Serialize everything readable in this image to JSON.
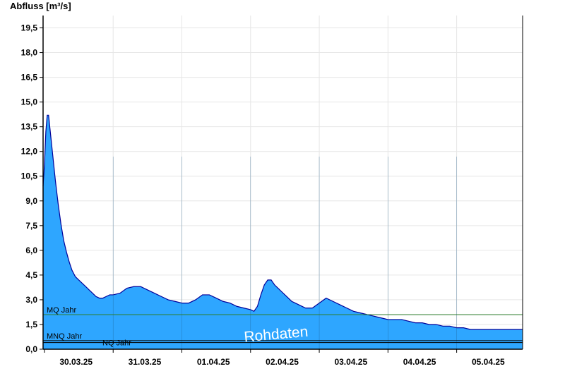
{
  "chart_data": {
    "type": "area",
    "ylabel": "Abfluss [m³/s]",
    "ylim": [
      0,
      20.25
    ],
    "yticks": [
      0.0,
      1.5,
      3.0,
      4.5,
      6.0,
      7.5,
      9.0,
      10.5,
      12.0,
      13.5,
      15.0,
      16.5,
      18.0,
      19.5
    ],
    "ytick_labels": [
      "0,0",
      "1,5",
      "3,0",
      "4,5",
      "6,0",
      "7,5",
      "9,0",
      "10,5",
      "12,0",
      "13,5",
      "15,0",
      "16,5",
      "18,0",
      "19,5"
    ],
    "xlim": [
      -0.02,
      6.96
    ],
    "xtick_labels": [
      "30.03.25",
      "31.03.25",
      "01.04.25",
      "02.04.25",
      "03.04.25",
      "04.04.25",
      "05.04.25"
    ],
    "xtick_positions": [
      0.46,
      1.46,
      2.46,
      3.46,
      4.46,
      5.46,
      6.46
    ],
    "grid": true,
    "fill_color": "#2ea6ff",
    "line_color": "#00009a",
    "reference_lines": [
      {
        "label": "MQ Jahr",
        "value": 2.1,
        "color": "#2e7d2e"
      },
      {
        "label": "MNQ Jahr",
        "value": 0.52,
        "color": "#000000"
      },
      {
        "label": "NQ Jahr",
        "value": 0.4,
        "color": "#000000"
      }
    ],
    "watermark": "Rohdaten",
    "series": [
      {
        "x": [
          -0.02,
          0.0,
          0.02,
          0.04,
          0.06,
          0.08,
          0.12,
          0.16,
          0.2,
          0.24,
          0.28,
          0.32,
          0.36,
          0.4,
          0.45,
          0.5,
          0.55,
          0.6,
          0.65,
          0.7,
          0.75,
          0.8,
          0.85,
          0.9,
          0.95,
          1.0,
          1.1,
          1.2,
          1.3,
          1.4,
          1.5,
          1.6,
          1.7,
          1.8,
          1.9,
          2.0,
          2.1,
          2.2,
          2.3,
          2.4,
          2.5,
          2.6,
          2.7,
          2.8,
          2.9,
          3.0,
          3.05,
          3.1,
          3.15,
          3.2,
          3.25,
          3.3,
          3.35,
          3.4,
          3.45,
          3.5,
          3.55,
          3.6,
          3.65,
          3.7,
          3.8,
          3.9,
          4.0,
          4.1,
          4.2,
          4.3,
          4.4,
          4.5,
          4.6,
          4.7,
          4.8,
          4.9,
          5.0,
          5.1,
          5.2,
          5.3,
          5.4,
          5.5,
          5.6,
          5.7,
          5.8,
          5.9,
          6.0,
          6.1,
          6.2,
          6.3,
          6.4,
          6.5,
          6.6,
          6.7,
          6.8,
          6.9,
          6.96
        ],
        "y": [
          9.9,
          11.2,
          13.2,
          14.2,
          14.2,
          13.4,
          11.8,
          10.2,
          8.8,
          7.6,
          6.6,
          5.9,
          5.3,
          4.8,
          4.4,
          4.2,
          4.0,
          3.8,
          3.6,
          3.4,
          3.2,
          3.1,
          3.1,
          3.2,
          3.3,
          3.3,
          3.4,
          3.7,
          3.8,
          3.8,
          3.6,
          3.4,
          3.2,
          3.0,
          2.9,
          2.8,
          2.8,
          3.0,
          3.3,
          3.3,
          3.1,
          2.9,
          2.8,
          2.6,
          2.5,
          2.4,
          2.3,
          2.6,
          3.3,
          3.9,
          4.2,
          4.2,
          3.9,
          3.7,
          3.5,
          3.3,
          3.1,
          2.9,
          2.8,
          2.7,
          2.5,
          2.5,
          2.8,
          3.1,
          2.9,
          2.7,
          2.5,
          2.3,
          2.2,
          2.1,
          2.0,
          1.9,
          1.8,
          1.8,
          1.8,
          1.7,
          1.6,
          1.6,
          1.5,
          1.5,
          1.4,
          1.4,
          1.3,
          1.3,
          1.2,
          1.2,
          1.2,
          1.2,
          1.2,
          1.2,
          1.2,
          1.2,
          1.2
        ]
      }
    ]
  }
}
